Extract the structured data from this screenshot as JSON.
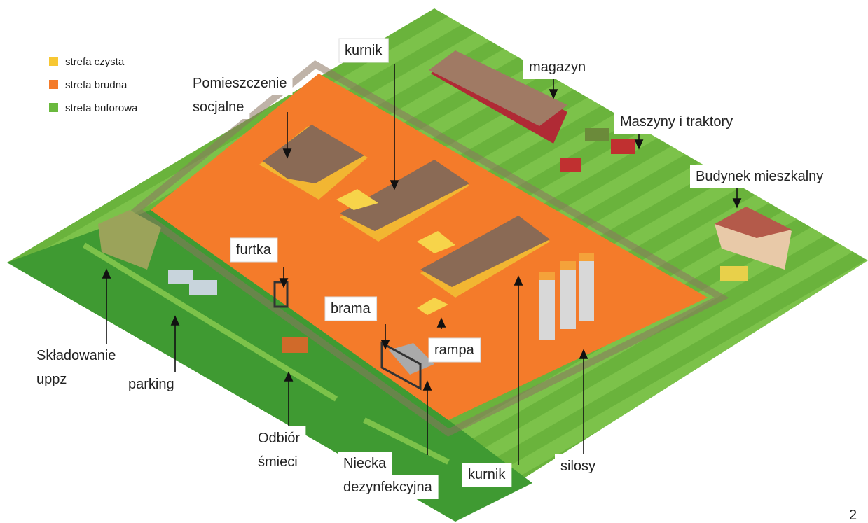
{
  "legend": [
    {
      "label": "strefa czysta",
      "color": "#f7c733"
    },
    {
      "label": "strefa brudna",
      "color": "#f47b2a"
    },
    {
      "label": "strefa buforowa",
      "color": "#6ab93e"
    }
  ],
  "labels": [
    {
      "lines": [
        "kurnik"
      ]
    },
    {
      "lines": [
        "Pomieszczenie",
        "socjalne"
      ]
    },
    {
      "lines": [
        "magazyn"
      ]
    },
    {
      "lines": [
        "Maszyny i traktory"
      ]
    },
    {
      "lines": [
        "Budynek mieszkalny"
      ]
    },
    {
      "lines": [
        "furtka"
      ]
    },
    {
      "lines": [
        "brama"
      ]
    },
    {
      "lines": [
        "rampa"
      ]
    },
    {
      "lines": [
        "Składowanie",
        "uppz"
      ]
    },
    {
      "lines": [
        "parking"
      ]
    },
    {
      "lines": [
        "Odbiór",
        "śmieci"
      ]
    },
    {
      "lines": [
        "Niecka",
        "dezynfekcyjna"
      ]
    },
    {
      "lines": [
        "kurnik"
      ]
    },
    {
      "lines": [
        "silosy"
      ]
    }
  ],
  "page_number": "2"
}
